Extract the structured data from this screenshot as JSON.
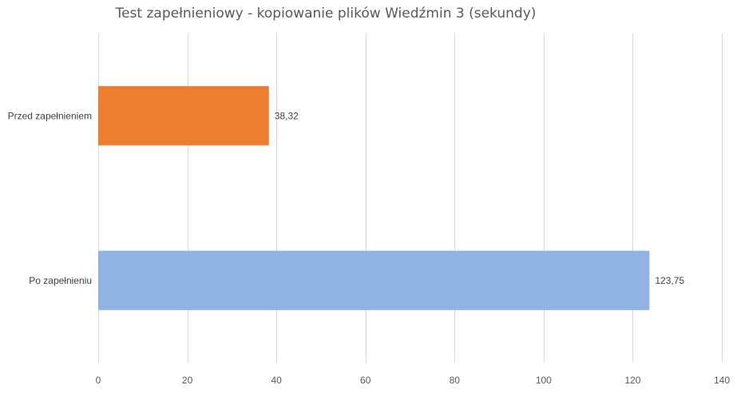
{
  "chart_data": {
    "type": "bar",
    "orientation": "horizontal",
    "title": "Test zapełnieniowy - kopiowanie plików Wiedźmin 3 (sekundy)",
    "xlabel": "",
    "ylabel": "",
    "categories": [
      "Przed zapełnieniem",
      "Po zapełnieniu"
    ],
    "values": [
      38.32,
      123.75
    ],
    "data_labels": [
      "38,32",
      "123,75"
    ],
    "colors": [
      "#ED7D31",
      "#8FB4E3"
    ],
    "xlim": [
      0,
      140
    ],
    "xticks": [
      0,
      20,
      40,
      60,
      80,
      100,
      120,
      140
    ],
    "grid": true,
    "legend": "none"
  }
}
